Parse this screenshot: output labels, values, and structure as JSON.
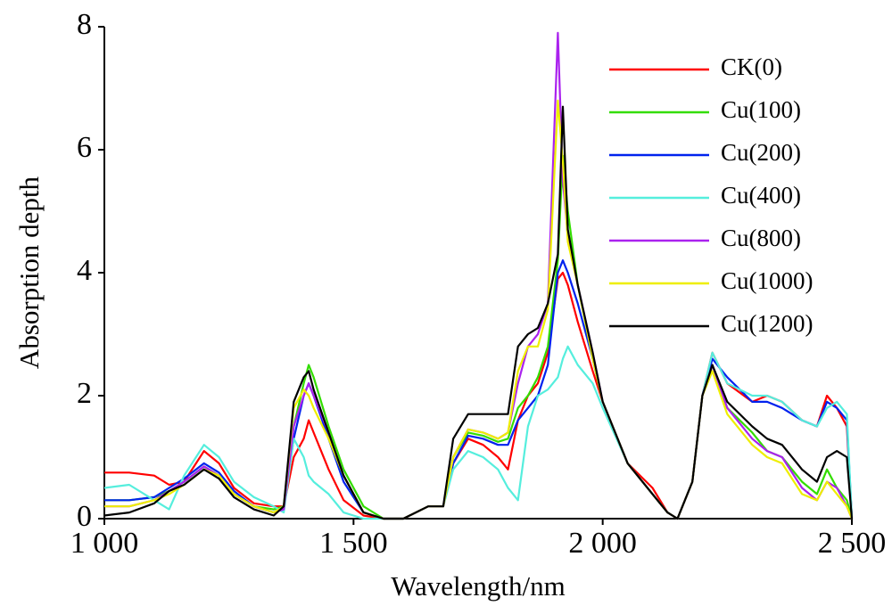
{
  "chart_data": {
    "type": "line",
    "x_label": "Wavelength/nm",
    "y_label": "Absorption depth",
    "x": [
      1000,
      1050,
      1100,
      1130,
      1160,
      1200,
      1230,
      1260,
      1300,
      1340,
      1360,
      1380,
      1400,
      1410,
      1420,
      1450,
      1480,
      1520,
      1560,
      1600,
      1650,
      1680,
      1700,
      1730,
      1760,
      1790,
      1810,
      1830,
      1850,
      1870,
      1890,
      1910,
      1920,
      1930,
      1950,
      1980,
      2000,
      2050,
      2100,
      2130,
      2150,
      2180,
      2200,
      2220,
      2250,
      2300,
      2330,
      2360,
      2400,
      2430,
      2450,
      2470,
      2490,
      2500
    ],
    "series": [
      {
        "name": "CK(0)",
        "color": "#ff0000",
        "values": [
          0.75,
          0.75,
          0.7,
          0.55,
          0.6,
          1.1,
          0.9,
          0.5,
          0.25,
          0.2,
          0.2,
          1.0,
          1.3,
          1.6,
          1.4,
          0.8,
          0.3,
          0.05,
          0,
          0,
          0.2,
          0.2,
          0.9,
          1.3,
          1.2,
          1.0,
          0.8,
          1.6,
          2.0,
          2.2,
          2.7,
          3.9,
          4.0,
          3.8,
          3.2,
          2.4,
          1.9,
          0.9,
          0.5,
          0.1,
          0,
          0.6,
          2.0,
          2.7,
          2.2,
          1.9,
          2.0,
          1.9,
          1.6,
          1.5,
          2.0,
          1.8,
          1.5,
          0
        ]
      },
      {
        "name": "Cu(100)",
        "color": "#33dd00",
        "values": [
          0.3,
          0.3,
          0.35,
          0.45,
          0.6,
          0.85,
          0.7,
          0.4,
          0.2,
          0.15,
          0.2,
          1.5,
          2.2,
          2.5,
          2.3,
          1.5,
          0.8,
          0.2,
          0,
          0,
          0.2,
          0.2,
          1.0,
          1.4,
          1.35,
          1.25,
          1.3,
          1.8,
          2.0,
          2.3,
          2.8,
          4.2,
          5.9,
          5.0,
          3.8,
          2.6,
          1.9,
          0.9,
          0.4,
          0.1,
          0,
          0.6,
          2.0,
          2.5,
          1.8,
          1.4,
          1.1,
          1.0,
          0.6,
          0.4,
          0.8,
          0.5,
          0.3,
          0
        ]
      },
      {
        "name": "Cu(200)",
        "color": "#0022ee",
        "values": [
          0.3,
          0.3,
          0.35,
          0.5,
          0.65,
          0.9,
          0.75,
          0.45,
          0.2,
          0.1,
          0.2,
          1.3,
          2.0,
          2.2,
          2.0,
          1.3,
          0.6,
          0.1,
          0,
          0,
          0.2,
          0.2,
          0.9,
          1.35,
          1.3,
          1.2,
          1.2,
          1.6,
          1.8,
          2.0,
          2.5,
          4.0,
          4.2,
          4.0,
          3.5,
          2.6,
          1.9,
          0.9,
          0.4,
          0.1,
          0,
          0.6,
          2.0,
          2.6,
          2.3,
          1.9,
          1.9,
          1.8,
          1.6,
          1.5,
          1.9,
          1.8,
          1.6,
          0
        ]
      },
      {
        "name": "Cu(400)",
        "color": "#55eedd",
        "values": [
          0.5,
          0.55,
          0.3,
          0.15,
          0.7,
          1.2,
          1.0,
          0.6,
          0.35,
          0.2,
          0.1,
          1.3,
          1.0,
          0.7,
          0.6,
          0.4,
          0.1,
          0,
          0,
          0,
          0.2,
          0.2,
          0.8,
          1.1,
          1.0,
          0.8,
          0.5,
          0.3,
          1.5,
          2.0,
          2.1,
          2.3,
          2.6,
          2.8,
          2.5,
          2.2,
          1.8,
          0.9,
          0.4,
          0.1,
          0,
          0.6,
          2.0,
          2.7,
          2.2,
          2.0,
          2.0,
          1.9,
          1.6,
          1.5,
          1.8,
          1.9,
          1.7,
          0
        ]
      },
      {
        "name": "Cu(800)",
        "color": "#aa22ee",
        "values": [
          0.2,
          0.2,
          0.3,
          0.45,
          0.6,
          0.85,
          0.7,
          0.4,
          0.2,
          0.1,
          0.15,
          1.5,
          2.0,
          2.2,
          2.0,
          1.4,
          0.7,
          0.1,
          0,
          0,
          0.2,
          0.2,
          1.0,
          1.45,
          1.4,
          1.3,
          1.4,
          2.2,
          2.8,
          3.0,
          3.5,
          7.9,
          5.5,
          4.6,
          3.8,
          2.7,
          1.9,
          0.9,
          0.4,
          0.1,
          0,
          0.6,
          2.0,
          2.5,
          1.8,
          1.3,
          1.1,
          1.0,
          0.5,
          0.3,
          0.6,
          0.5,
          0.2,
          0
        ]
      },
      {
        "name": "Cu(1000)",
        "color": "#eeee00",
        "values": [
          0.2,
          0.2,
          0.3,
          0.4,
          0.55,
          0.8,
          0.7,
          0.4,
          0.2,
          0.1,
          0.2,
          1.8,
          2.1,
          2.0,
          1.8,
          1.3,
          0.7,
          0.1,
          0,
          0,
          0.2,
          0.2,
          1.0,
          1.45,
          1.4,
          1.3,
          1.4,
          2.4,
          2.8,
          2.8,
          3.4,
          6.8,
          5.8,
          4.5,
          3.8,
          2.6,
          1.9,
          0.9,
          0.4,
          0.1,
          0,
          0.6,
          2.0,
          2.4,
          1.7,
          1.2,
          1.0,
          0.9,
          0.4,
          0.3,
          0.6,
          0.4,
          0.2,
          0
        ]
      },
      {
        "name": "Cu(1200)",
        "color": "#000000",
        "values": [
          0.05,
          0.1,
          0.25,
          0.45,
          0.55,
          0.8,
          0.65,
          0.35,
          0.15,
          0.05,
          0.2,
          1.9,
          2.3,
          2.4,
          2.1,
          1.4,
          0.7,
          0.1,
          0,
          0,
          0.2,
          0.2,
          1.3,
          1.7,
          1.7,
          1.7,
          1.7,
          2.8,
          3.0,
          3.1,
          3.5,
          4.3,
          6.7,
          4.7,
          3.8,
          2.7,
          1.9,
          0.9,
          0.4,
          0.1,
          0,
          0.6,
          2.0,
          2.5,
          1.9,
          1.5,
          1.3,
          1.2,
          0.8,
          0.6,
          1.0,
          1.1,
          1.0,
          0
        ]
      }
    ],
    "xlim": [
      1000,
      2500
    ],
    "xticks": [
      {
        "value": 1000,
        "label": "1 000"
      },
      {
        "value": 1500,
        "label": "1 500"
      },
      {
        "value": 2000,
        "label": "2 000"
      },
      {
        "value": 2500,
        "label": "2 500"
      }
    ],
    "ylim": [
      0,
      8
    ],
    "yticks": [
      0,
      2,
      4,
      6,
      8
    ],
    "grid": false,
    "legend": "upper right"
  }
}
